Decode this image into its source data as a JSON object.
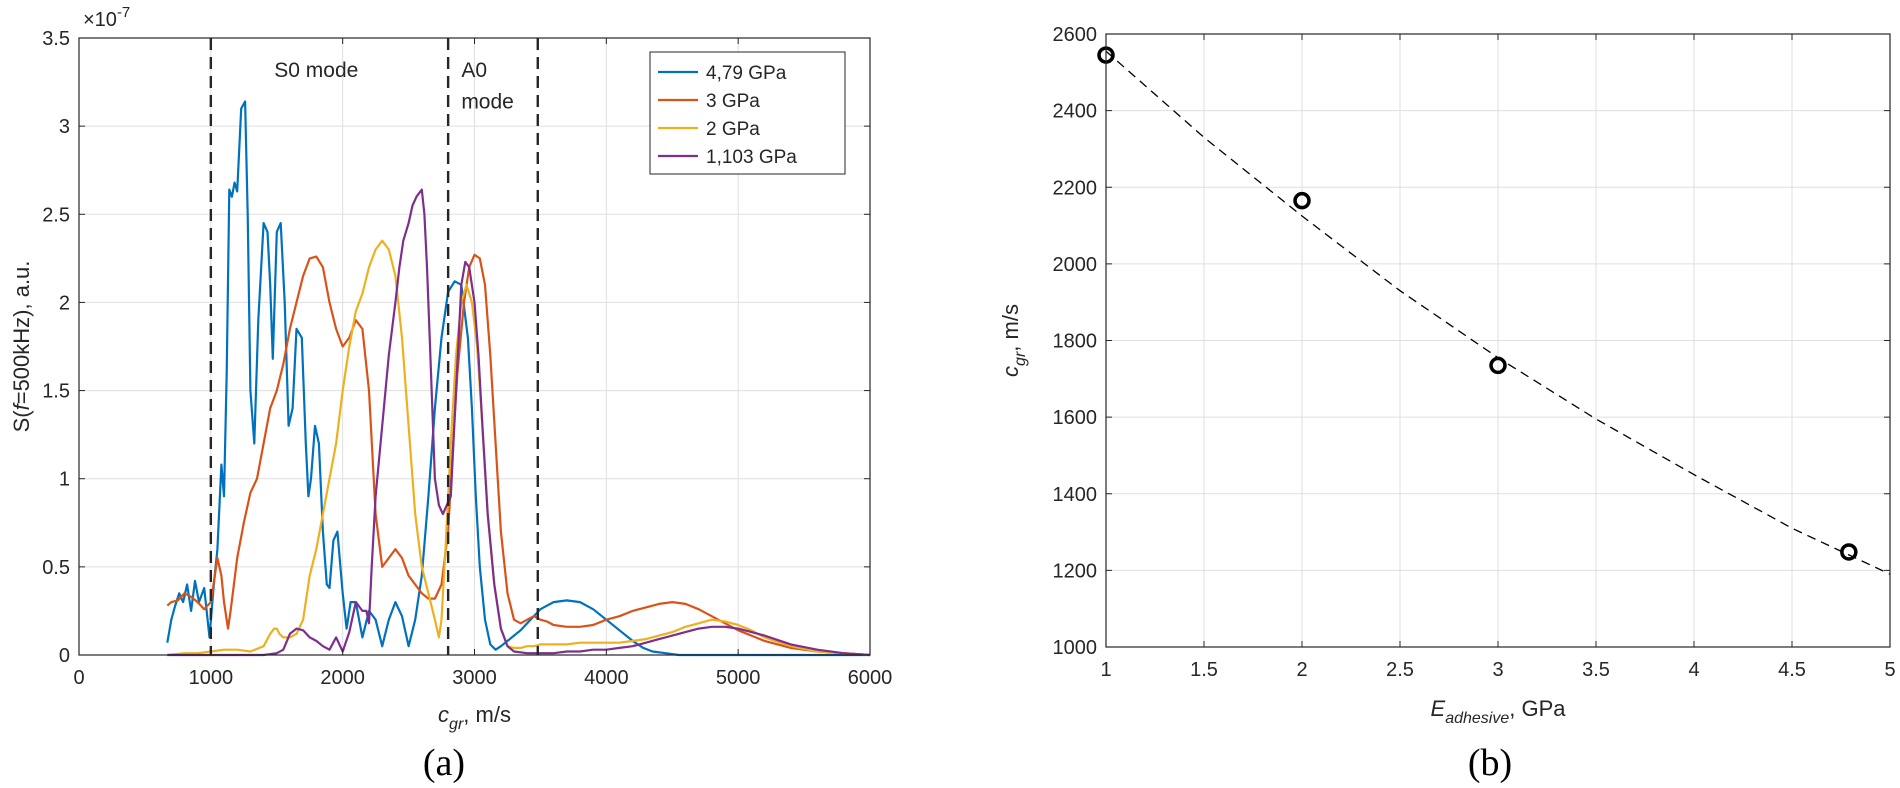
{
  "chart_data": [
    {
      "type": "line",
      "panel_label": "(a)",
      "xlabel": "c_gr, m/s",
      "xlabel_main": "c",
      "xlabel_sub": "gr",
      "xlabel_rest": ", m/s",
      "ylabel": "S(f=500kHz), a.u.",
      "ylabel_pre": "S(",
      "ylabel_italic": "f",
      "ylabel_post": "=500kHz), a.u.",
      "exponent_label": "×10",
      "exponent_power": "-7",
      "xlim": [
        0,
        6000
      ],
      "ylim": [
        0,
        3.5
      ],
      "xticks": [
        0,
        1000,
        2000,
        3000,
        4000,
        5000,
        6000
      ],
      "yticks": [
        0,
        0.5,
        1,
        1.5,
        2,
        2.5,
        3,
        3.5
      ],
      "xtick_labels": [
        "0",
        "1000",
        "2000",
        "3000",
        "4000",
        "5000",
        "6000"
      ],
      "ytick_labels": [
        "0",
        "0.5",
        "1",
        "1.5",
        "2",
        "2.5",
        "3",
        "3.5"
      ],
      "grid": true,
      "legend_position": "top-right",
      "vlines": [
        1000,
        2800,
        3480
      ],
      "annotations": [
        {
          "text": "S0 mode",
          "x": 1800,
          "y": 3.28
        },
        {
          "text": "A0",
          "x": 2900,
          "y": 3.28
        },
        {
          "text": "mode",
          "x": 2900,
          "y": 3.1
        }
      ],
      "series": [
        {
          "name": "4,79 GPa",
          "color": "#0072BD",
          "x": [
            670,
            700,
            730,
            760,
            790,
            820,
            850,
            880,
            910,
            950,
            990,
            1020,
            1050,
            1080,
            1100,
            1120,
            1140,
            1160,
            1180,
            1200,
            1230,
            1260,
            1280,
            1300,
            1330,
            1360,
            1400,
            1430,
            1450,
            1470,
            1500,
            1530,
            1560,
            1590,
            1620,
            1650,
            1690,
            1720,
            1740,
            1760,
            1790,
            1820,
            1850,
            1880,
            1900,
            1930,
            1960,
            2000,
            2030,
            2060,
            2100,
            2150,
            2200,
            2250,
            2300,
            2350,
            2400,
            2450,
            2500,
            2550,
            2600,
            2650,
            2700,
            2750,
            2800,
            2850,
            2900,
            2950,
            2980,
            3010,
            3040,
            3080,
            3120,
            3160,
            3200,
            3250,
            3300,
            3350,
            3400,
            3450,
            3500,
            3600,
            3700,
            3800,
            3900,
            4000,
            4100,
            4200,
            4280,
            4350,
            4450,
            4550,
            4650,
            4750,
            4850,
            5000,
            5200,
            5400,
            5600,
            5800,
            6000
          ],
          "y": [
            0.07,
            0.2,
            0.28,
            0.35,
            0.3,
            0.4,
            0.25,
            0.42,
            0.3,
            0.38,
            0.1,
            0.38,
            0.6,
            1.08,
            0.9,
            1.6,
            2.64,
            2.6,
            2.68,
            2.63,
            3.1,
            3.14,
            2.5,
            1.5,
            1.2,
            1.9,
            2.45,
            2.4,
            2.1,
            1.68,
            2.4,
            2.45,
            2.0,
            1.3,
            1.4,
            1.85,
            1.8,
            1.2,
            0.9,
            1.0,
            1.3,
            1.2,
            0.7,
            0.4,
            0.38,
            0.65,
            0.7,
            0.35,
            0.15,
            0.3,
            0.3,
            0.1,
            0.25,
            0.2,
            0.05,
            0.2,
            0.3,
            0.22,
            0.05,
            0.2,
            0.45,
            0.9,
            1.4,
            1.8,
            2.06,
            2.12,
            2.1,
            1.8,
            1.4,
            0.9,
            0.5,
            0.2,
            0.06,
            0.03,
            0.05,
            0.08,
            0.11,
            0.14,
            0.18,
            0.22,
            0.26,
            0.3,
            0.31,
            0.3,
            0.26,
            0.2,
            0.14,
            0.08,
            0.04,
            0.02,
            0.01,
            0.0,
            0.0,
            0.0,
            0.0,
            0.0,
            0.0,
            0.0,
            0.0,
            0.0,
            0.0
          ]
        },
        {
          "name": "3 GPa",
          "color": "#D95319",
          "x": [
            670,
            700,
            750,
            800,
            850,
            900,
            950,
            1000,
            1020,
            1050,
            1080,
            1100,
            1130,
            1150,
            1200,
            1250,
            1300,
            1350,
            1400,
            1450,
            1500,
            1550,
            1600,
            1650,
            1700,
            1750,
            1800,
            1850,
            1900,
            1950,
            2000,
            2050,
            2100,
            2150,
            2200,
            2250,
            2300,
            2350,
            2400,
            2450,
            2500,
            2550,
            2600,
            2650,
            2700,
            2750,
            2800,
            2830,
            2870,
            2920,
            2960,
            3000,
            3040,
            3080,
            3120,
            3160,
            3200,
            3250,
            3300,
            3350,
            3400,
            3450,
            3500,
            3550,
            3600,
            3700,
            3800,
            3900,
            4000,
            4100,
            4200,
            4300,
            4400,
            4500,
            4600,
            4700,
            4800,
            4900,
            5000,
            5200,
            5400,
            5600,
            5800,
            6000
          ],
          "y": [
            0.28,
            0.3,
            0.31,
            0.35,
            0.33,
            0.3,
            0.26,
            0.3,
            0.4,
            0.55,
            0.45,
            0.3,
            0.15,
            0.25,
            0.55,
            0.75,
            0.92,
            1.0,
            1.2,
            1.4,
            1.5,
            1.65,
            1.85,
            2.0,
            2.15,
            2.25,
            2.26,
            2.2,
            2.0,
            1.85,
            1.75,
            1.8,
            1.9,
            1.85,
            1.5,
            0.8,
            0.5,
            0.55,
            0.6,
            0.55,
            0.45,
            0.4,
            0.35,
            0.32,
            0.32,
            0.4,
            0.7,
            1.1,
            1.6,
            2.0,
            2.2,
            2.27,
            2.25,
            2.1,
            1.7,
            1.2,
            0.7,
            0.35,
            0.2,
            0.18,
            0.2,
            0.22,
            0.2,
            0.19,
            0.17,
            0.16,
            0.16,
            0.17,
            0.2,
            0.22,
            0.25,
            0.27,
            0.29,
            0.3,
            0.29,
            0.26,
            0.22,
            0.18,
            0.14,
            0.08,
            0.04,
            0.02,
            0.01,
            0.0
          ]
        },
        {
          "name": "2 GPa",
          "color": "#EDB120",
          "x": [
            670,
            800,
            900,
            1000,
            1100,
            1200,
            1300,
            1400,
            1450,
            1480,
            1500,
            1520,
            1550,
            1600,
            1650,
            1700,
            1750,
            1800,
            1850,
            1900,
            1950,
            2000,
            2050,
            2100,
            2150,
            2200,
            2250,
            2300,
            2350,
            2400,
            2450,
            2500,
            2550,
            2600,
            2650,
            2700,
            2730,
            2750,
            2780,
            2820,
            2860,
            2900,
            2940,
            2980,
            3020,
            3060,
            3100,
            3150,
            3200,
            3250,
            3300,
            3350,
            3400,
            3450,
            3500,
            3600,
            3700,
            3800,
            3900,
            4000,
            4100,
            4200,
            4300,
            4400,
            4500,
            4600,
            4700,
            4800,
            4900,
            5000,
            5100,
            5200,
            5400,
            5600,
            5800,
            6000
          ],
          "y": [
            0.0,
            0.01,
            0.01,
            0.02,
            0.03,
            0.03,
            0.02,
            0.05,
            0.12,
            0.15,
            0.15,
            0.12,
            0.1,
            0.1,
            0.12,
            0.2,
            0.45,
            0.6,
            0.8,
            1.0,
            1.2,
            1.5,
            1.75,
            1.95,
            2.05,
            2.2,
            2.3,
            2.35,
            2.3,
            2.15,
            1.8,
            1.3,
            0.8,
            0.5,
            0.35,
            0.2,
            0.1,
            0.2,
            0.6,
            1.2,
            1.7,
            2.0,
            2.1,
            2.0,
            1.75,
            1.3,
            0.8,
            0.4,
            0.15,
            0.05,
            0.04,
            0.04,
            0.05,
            0.05,
            0.06,
            0.06,
            0.06,
            0.07,
            0.07,
            0.07,
            0.07,
            0.08,
            0.09,
            0.11,
            0.13,
            0.16,
            0.18,
            0.2,
            0.19,
            0.17,
            0.14,
            0.1,
            0.05,
            0.02,
            0.01,
            0.0
          ]
        },
        {
          "name": "1,103 GPa",
          "color": "#7E2F8E",
          "x": [
            670,
            1300,
            1400,
            1500,
            1550,
            1600,
            1650,
            1700,
            1750,
            1800,
            1850,
            1900,
            1950,
            2000,
            2050,
            2100,
            2120,
            2150,
            2180,
            2200,
            2220,
            2250,
            2300,
            2350,
            2400,
            2430,
            2460,
            2500,
            2530,
            2560,
            2600,
            2620,
            2640,
            2660,
            2680,
            2700,
            2730,
            2760,
            2790,
            2820,
            2840,
            2860,
            2880,
            2900,
            2930,
            2960,
            3000,
            3030,
            3060,
            3100,
            3150,
            3200,
            3250,
            3300,
            3400,
            3500,
            3600,
            3700,
            3800,
            3900,
            4000,
            4100,
            4200,
            4300,
            4400,
            4500,
            4600,
            4700,
            4800,
            4900,
            5000,
            5100,
            5200,
            5400,
            5600,
            5800,
            6000
          ],
          "y": [
            0.0,
            0.0,
            0.0,
            0.01,
            0.03,
            0.12,
            0.15,
            0.14,
            0.1,
            0.08,
            0.05,
            0.03,
            0.1,
            0.02,
            0.13,
            0.3,
            0.28,
            0.25,
            0.25,
            0.18,
            0.5,
            0.9,
            1.3,
            1.7,
            2.0,
            2.2,
            2.35,
            2.45,
            2.55,
            2.6,
            2.64,
            2.5,
            2.2,
            1.8,
            1.4,
            1.0,
            0.85,
            0.8,
            0.85,
            0.9,
            1.2,
            1.5,
            1.8,
            2.1,
            2.23,
            2.2,
            2.0,
            1.7,
            1.3,
            0.8,
            0.4,
            0.15,
            0.05,
            0.02,
            0.01,
            0.01,
            0.01,
            0.02,
            0.02,
            0.03,
            0.03,
            0.04,
            0.05,
            0.07,
            0.09,
            0.11,
            0.13,
            0.15,
            0.16,
            0.16,
            0.15,
            0.13,
            0.11,
            0.06,
            0.03,
            0.01,
            0.0
          ]
        }
      ]
    },
    {
      "type": "scatter",
      "panel_label": "(b)",
      "xlabel": "E_adhesive, GPa",
      "xlabel_main": "E",
      "xlabel_sub": "adhesive",
      "xlabel_rest": ", GPa",
      "ylabel": "c_gr, m/s",
      "ylabel_main": "c",
      "ylabel_sub": "gr",
      "ylabel_rest": ", m/s",
      "xlim": [
        1,
        5
      ],
      "ylim": [
        1000,
        2600
      ],
      "xticks": [
        1,
        1.5,
        2,
        2.5,
        3,
        3.5,
        4,
        4.5,
        5
      ],
      "yticks": [
        1000,
        1200,
        1400,
        1600,
        1800,
        2000,
        2200,
        2400,
        2600
      ],
      "xtick_labels": [
        "1",
        "1.5",
        "2",
        "2.5",
        "3",
        "3.5",
        "4",
        "4.5",
        "5"
      ],
      "ytick_labels": [
        "1000",
        "1200",
        "1400",
        "1600",
        "1800",
        "2000",
        "2200",
        "2400",
        "2600"
      ],
      "grid": true,
      "points": {
        "x": [
          1.0,
          2.0,
          3.0,
          4.79
        ],
        "y": [
          2545,
          2165,
          1735,
          1248
        ]
      },
      "fit": {
        "x": [
          1.0,
          1.5,
          2.0,
          2.5,
          3.0,
          3.5,
          4.0,
          4.5,
          5.0
        ],
        "y": [
          2555,
          2330,
          2125,
          1930,
          1755,
          1595,
          1450,
          1310,
          1190
        ]
      }
    }
  ]
}
